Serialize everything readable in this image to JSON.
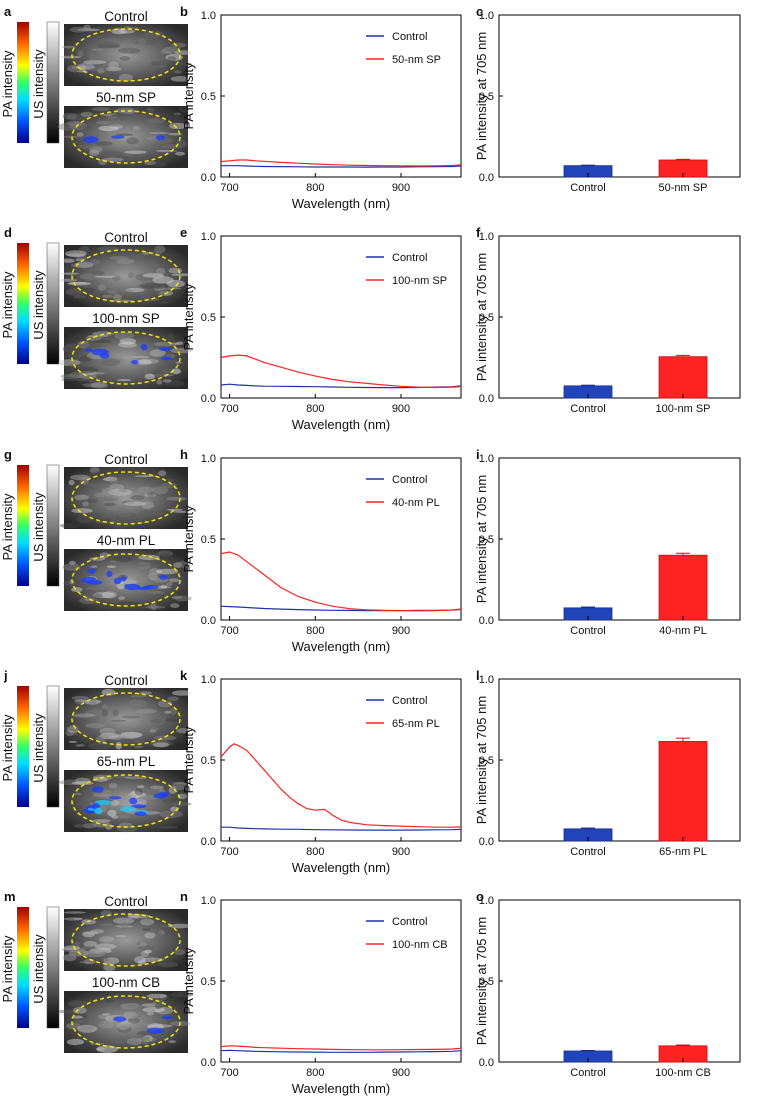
{
  "figure": {
    "colorbar_labels": {
      "pa": "PA intensity",
      "us": "US intensity"
    },
    "image_labels": {
      "top": "Control"
    },
    "spectrum_axes": {
      "ylabel": "PA intensity",
      "xlabel": "Wavelength (nm)",
      "xlim": [
        690,
        970
      ],
      "ylim": [
        0,
        1
      ],
      "xticks": [
        "700",
        "800",
        "900"
      ],
      "yticks": [
        "0.0",
        "0.5",
        "1.0"
      ]
    },
    "bar_axes": {
      "ylabel": "PA intensity at 705 nm",
      "ylim": [
        0,
        1
      ],
      "yticks": [
        "0.0",
        "0.5",
        "1.0"
      ]
    }
  },
  "colors": {
    "control": "#2233aa",
    "sample": "#ff2222",
    "ellipse": "#f2e500"
  },
  "chart_data": [
    {
      "row": "a-c",
      "image_panel": {
        "letter": "a",
        "sample_label": "50-nm SP"
      },
      "spectrum": {
        "letter": "b",
        "type": "line",
        "legend": [
          "Control",
          "50-nm SP"
        ],
        "series": [
          {
            "name": "Control",
            "x": [
              690,
              700,
              710,
              720,
              730,
              740,
              760,
              780,
              800,
              820,
              840,
              860,
              880,
              900,
              920,
              940,
              960,
              970
            ],
            "y": [
              0.07,
              0.07,
              0.07,
              0.068,
              0.066,
              0.065,
              0.064,
              0.063,
              0.062,
              0.062,
              0.062,
              0.061,
              0.062,
              0.062,
              0.063,
              0.064,
              0.065,
              0.068
            ]
          },
          {
            "name": "50-nm SP",
            "x": [
              690,
              700,
              710,
              720,
              730,
              740,
              760,
              780,
              800,
              820,
              840,
              860,
              880,
              900,
              920,
              940,
              960,
              970
            ],
            "y": [
              0.095,
              0.1,
              0.105,
              0.105,
              0.1,
              0.097,
              0.09,
              0.085,
              0.08,
              0.076,
              0.073,
              0.071,
              0.07,
              0.069,
              0.068,
              0.069,
              0.071,
              0.075
            ]
          }
        ]
      },
      "bar": {
        "letter": "c",
        "type": "bar",
        "categories": [
          "Control",
          "50-nm SP"
        ],
        "values": [
          0.07,
          0.105
        ],
        "errors": [
          0.003,
          0.004
        ]
      }
    },
    {
      "row": "d-f",
      "image_panel": {
        "letter": "d",
        "sample_label": "100-nm SP"
      },
      "spectrum": {
        "letter": "e",
        "type": "line",
        "legend": [
          "Control",
          "100-nm SP"
        ],
        "series": [
          {
            "name": "Control",
            "x": [
              690,
              700,
              710,
              720,
              730,
              740,
              760,
              780,
              800,
              820,
              840,
              860,
              880,
              900,
              920,
              940,
              960,
              970
            ],
            "y": [
              0.08,
              0.085,
              0.08,
              0.078,
              0.075,
              0.073,
              0.072,
              0.071,
              0.07,
              0.068,
              0.066,
              0.065,
              0.064,
              0.064,
              0.065,
              0.067,
              0.07,
              0.075
            ]
          },
          {
            "name": "100-nm SP",
            "x": [
              690,
              700,
              710,
              720,
              730,
              740,
              760,
              780,
              800,
              820,
              840,
              860,
              880,
              900,
              920,
              940,
              960,
              970
            ],
            "y": [
              0.25,
              0.26,
              0.265,
              0.26,
              0.24,
              0.22,
              0.19,
              0.16,
              0.135,
              0.115,
              0.1,
              0.09,
              0.08,
              0.072,
              0.067,
              0.065,
              0.067,
              0.07
            ]
          }
        ]
      },
      "bar": {
        "letter": "f",
        "type": "bar",
        "categories": [
          "Control",
          "100-nm SP"
        ],
        "values": [
          0.075,
          0.255
        ],
        "errors": [
          0.004,
          0.008
        ]
      }
    },
    {
      "row": "g-i",
      "image_panel": {
        "letter": "g",
        "sample_label": "40-nm PL"
      },
      "spectrum": {
        "letter": "h",
        "type": "line",
        "legend": [
          "Control",
          "40-nm PL"
        ],
        "series": [
          {
            "name": "Control",
            "x": [
              690,
              700,
              710,
              720,
              730,
              740,
              760,
              780,
              800,
              820,
              840,
              860,
              880,
              900,
              920,
              940,
              960,
              970
            ],
            "y": [
              0.085,
              0.083,
              0.08,
              0.077,
              0.074,
              0.071,
              0.067,
              0.064,
              0.062,
              0.06,
              0.059,
              0.058,
              0.058,
              0.058,
              0.059,
              0.06,
              0.062,
              0.065
            ]
          },
          {
            "name": "40-nm PL",
            "x": [
              690,
              700,
              710,
              720,
              730,
              740,
              760,
              780,
              800,
              820,
              840,
              860,
              880,
              900,
              920,
              940,
              960,
              970
            ],
            "y": [
              0.41,
              0.42,
              0.4,
              0.36,
              0.32,
              0.28,
              0.2,
              0.145,
              0.11,
              0.085,
              0.07,
              0.063,
              0.06,
              0.058,
              0.057,
              0.058,
              0.062,
              0.068
            ]
          }
        ]
      },
      "bar": {
        "letter": "i",
        "type": "bar",
        "categories": [
          "Control",
          "40-nm PL"
        ],
        "values": [
          0.075,
          0.4
        ],
        "errors": [
          0.005,
          0.012
        ]
      }
    },
    {
      "row": "j-l",
      "image_panel": {
        "letter": "j",
        "sample_label": "65-nm PL"
      },
      "spectrum": {
        "letter": "k",
        "type": "line",
        "legend": [
          "Control",
          "65-nm PL"
        ],
        "series": [
          {
            "name": "Control",
            "x": [
              690,
              700,
              710,
              720,
              730,
              740,
              760,
              780,
              800,
              820,
              840,
              860,
              880,
              900,
              920,
              940,
              960,
              970
            ],
            "y": [
              0.085,
              0.085,
              0.08,
              0.078,
              0.076,
              0.075,
              0.073,
              0.072,
              0.07,
              0.069,
              0.068,
              0.067,
              0.067,
              0.067,
              0.068,
              0.069,
              0.07,
              0.072
            ]
          },
          {
            "name": "65-nm PL",
            "x": [
              690,
              700,
              705,
              710,
              720,
              730,
              740,
              750,
              760,
              770,
              780,
              790,
              800,
              810,
              815,
              820,
              830,
              840,
              860,
              880,
              900,
              920,
              940,
              960,
              970
            ],
            "y": [
              0.52,
              0.58,
              0.6,
              0.59,
              0.56,
              0.5,
              0.44,
              0.38,
              0.32,
              0.27,
              0.23,
              0.2,
              0.19,
              0.195,
              0.18,
              0.16,
              0.13,
              0.115,
              0.1,
              0.095,
              0.092,
              0.088,
              0.085,
              0.085,
              0.087
            ]
          }
        ]
      },
      "bar": {
        "letter": "l",
        "type": "bar",
        "categories": [
          "Control",
          "65-nm PL"
        ],
        "values": [
          0.075,
          0.615
        ],
        "errors": [
          0.005,
          0.02
        ]
      }
    },
    {
      "row": "m-o",
      "image_panel": {
        "letter": "m",
        "sample_label": "100-nm CB"
      },
      "spectrum": {
        "letter": "n",
        "type": "line",
        "legend": [
          "Control",
          "100-nm CB"
        ],
        "series": [
          {
            "name": "Control",
            "x": [
              690,
              700,
              710,
              720,
              730,
              740,
              760,
              780,
              800,
              820,
              840,
              860,
              880,
              900,
              920,
              940,
              960,
              970
            ],
            "y": [
              0.07,
              0.072,
              0.07,
              0.068,
              0.066,
              0.065,
              0.063,
              0.062,
              0.061,
              0.06,
              0.06,
              0.06,
              0.061,
              0.062,
              0.063,
              0.064,
              0.066,
              0.07
            ]
          },
          {
            "name": "100-nm CB",
            "x": [
              690,
              700,
              710,
              720,
              730,
              740,
              760,
              780,
              800,
              820,
              840,
              860,
              880,
              900,
              920,
              940,
              960,
              970
            ],
            "y": [
              0.095,
              0.1,
              0.098,
              0.095,
              0.09,
              0.088,
              0.085,
              0.082,
              0.08,
              0.078,
              0.076,
              0.075,
              0.075,
              0.076,
              0.077,
              0.078,
              0.08,
              0.085
            ]
          }
        ]
      },
      "bar": {
        "letter": "o",
        "type": "bar",
        "categories": [
          "Control",
          "100-nm CB"
        ],
        "values": [
          0.068,
          0.1
        ],
        "errors": [
          0.003,
          0.005
        ]
      }
    }
  ]
}
